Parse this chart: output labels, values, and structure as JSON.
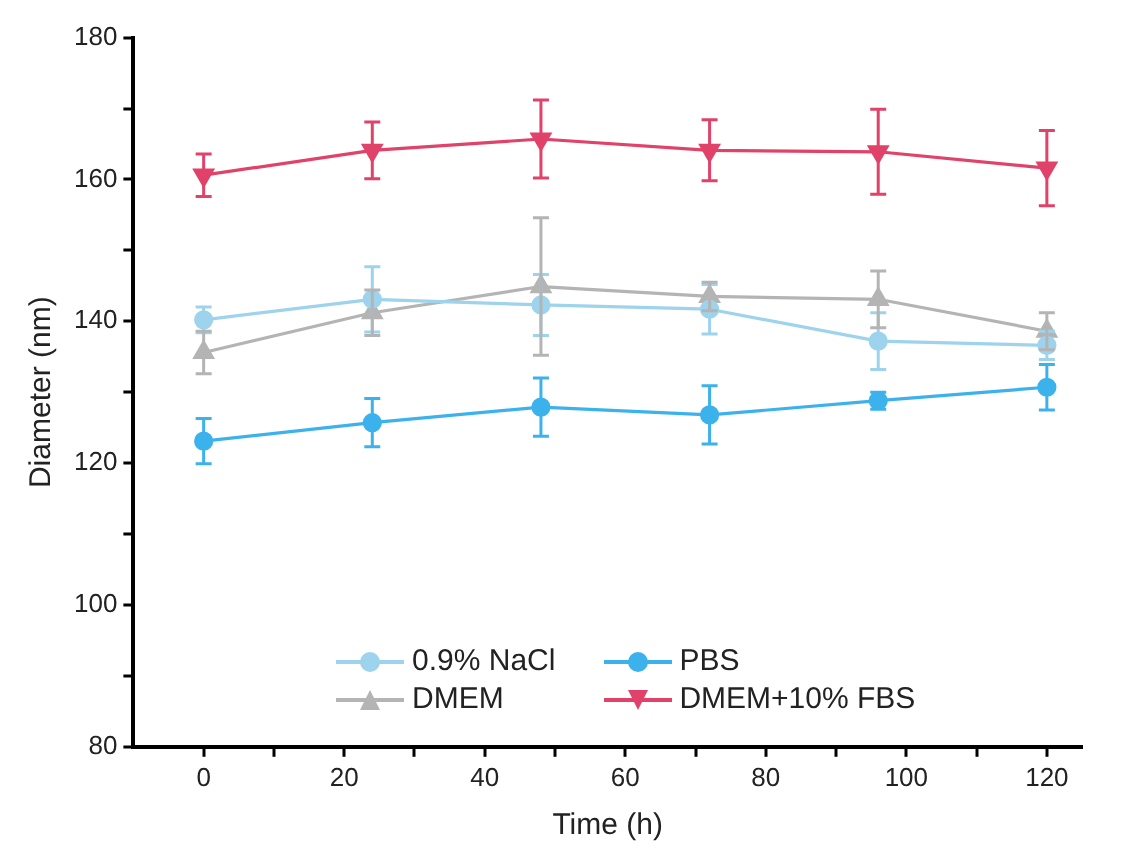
{
  "chart_data": {
    "type": "line",
    "xlabel": "Time (h)",
    "ylabel": "Diameter (nm)",
    "x": [
      0,
      24,
      48,
      72,
      96,
      120
    ],
    "xlim": [
      -10,
      125
    ],
    "xticks": [
      0,
      {
        "value": 10,
        "label": null
      },
      20,
      {
        "value": 30,
        "label": null
      },
      40,
      {
        "value": 50,
        "label": null
      },
      60,
      {
        "value": 70,
        "label": null
      },
      80,
      {
        "value": 90,
        "label": null
      },
      100,
      {
        "value": 110,
        "label": null
      },
      120
    ],
    "ylim": [
      80,
      180
    ],
    "yticks": [
      80,
      {
        "value": 90,
        "label": null
      },
      100,
      {
        "value": 110,
        "label": null
      },
      120,
      {
        "value": 130,
        "label": null
      },
      140,
      {
        "value": 150,
        "label": null
      },
      160,
      {
        "value": 170,
        "label": null
      },
      180
    ],
    "series": [
      {
        "name": "0.9% NaCl",
        "color": "#9dd3ec",
        "marker": "circle",
        "values": [
          140.2,
          143.1,
          142.3,
          141.7,
          137.2,
          136.6
        ],
        "errors": [
          1.8,
          4.6,
          4.3,
          3.5,
          4,
          2
        ]
      },
      {
        "name": "PBS",
        "color": "#3cb2ec",
        "marker": "circle",
        "values": [
          123.1,
          125.7,
          127.9,
          126.8,
          128.8,
          130.7
        ],
        "errors": [
          3.2,
          3.4,
          4.1,
          4.1,
          1.2,
          3.2
        ]
      },
      {
        "name": "DMEM",
        "color": "#b4b4b4",
        "marker": "triangle",
        "values": [
          135.6,
          141.2,
          144.9,
          143.5,
          143.1,
          138.6
        ],
        "errors": [
          3,
          3.2,
          9.7,
          2,
          4,
          2.6
        ]
      },
      {
        "name": "DMEM+10% FBS",
        "color": "#e0426a",
        "marker": "triangle_down",
        "values": [
          160.6,
          164.1,
          165.7,
          164.1,
          163.9,
          161.6
        ],
        "errors": [
          3,
          4,
          5.5,
          4.3,
          6,
          5.3
        ]
      }
    ],
    "legend": "bottom",
    "grid": false,
    "line_style": "solid"
  }
}
